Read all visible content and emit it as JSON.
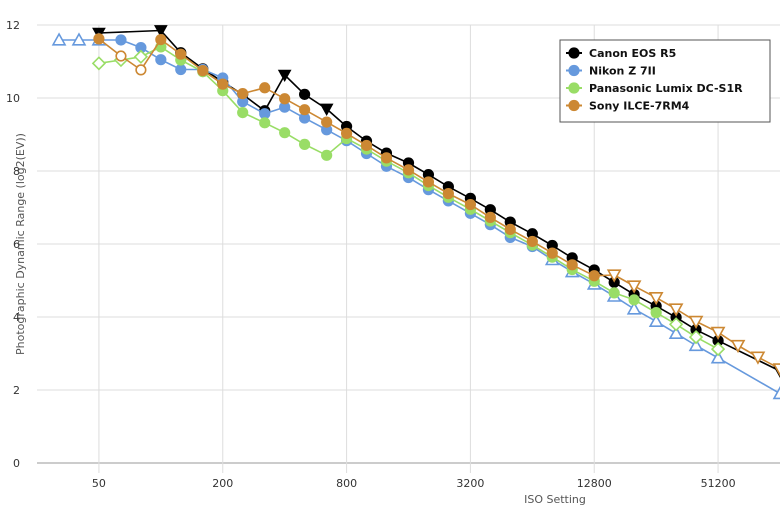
{
  "chart_data": {
    "type": "line",
    "title": "",
    "xlabel": "ISO Setting",
    "ylabel": "Photographic Dynamic Range (log2(EV))",
    "x_scale": "log2",
    "xlim": [
      25,
      102400
    ],
    "ylim": [
      0,
      12
    ],
    "x_ticks": [
      50,
      200,
      800,
      3200,
      12800,
      51200
    ],
    "x_tick_labels": [
      "50",
      "200",
      "800",
      "3200",
      "12800",
      "51200"
    ],
    "y_ticks": [
      0,
      2,
      4,
      6,
      8,
      10,
      12
    ],
    "y_tick_labels": [
      "0",
      "2",
      "4",
      "6",
      "8",
      "10",
      "12"
    ],
    "grid": true,
    "legend_position": "top-right",
    "series": [
      {
        "name": "Canon EOS R5",
        "color": "#000000",
        "marker": "circle",
        "extended_marker": "triangle-down",
        "points": [
          {
            "x": 50,
            "y": 11.78,
            "extended": true
          },
          {
            "x": 100,
            "y": 11.85,
            "extended": true
          },
          {
            "x": 125,
            "y": 11.24
          },
          {
            "x": 160,
            "y": 10.8
          },
          {
            "x": 200,
            "y": 10.44
          },
          {
            "x": 250,
            "y": 10.1
          },
          {
            "x": 320,
            "y": 9.65
          },
          {
            "x": 400,
            "y": 10.63,
            "extended": true
          },
          {
            "x": 500,
            "y": 10.1
          },
          {
            "x": 640,
            "y": 9.7,
            "extended": true
          },
          {
            "x": 800,
            "y": 9.22
          },
          {
            "x": 1000,
            "y": 8.82
          },
          {
            "x": 1250,
            "y": 8.49
          },
          {
            "x": 1600,
            "y": 8.22
          },
          {
            "x": 2000,
            "y": 7.9
          },
          {
            "x": 2500,
            "y": 7.57
          },
          {
            "x": 3200,
            "y": 7.25
          },
          {
            "x": 4000,
            "y": 6.94
          },
          {
            "x": 5000,
            "y": 6.6
          },
          {
            "x": 6400,
            "y": 6.28
          },
          {
            "x": 8000,
            "y": 5.96
          },
          {
            "x": 10000,
            "y": 5.62
          },
          {
            "x": 12800,
            "y": 5.29
          },
          {
            "x": 16000,
            "y": 4.95
          },
          {
            "x": 20000,
            "y": 4.62
          },
          {
            "x": 25600,
            "y": 4.3
          },
          {
            "x": 32000,
            "y": 3.99
          },
          {
            "x": 40000,
            "y": 3.65
          },
          {
            "x": 51200,
            "y": 3.35
          },
          {
            "x": 102400,
            "y": 2.52,
            "extended": true
          }
        ]
      },
      {
        "name": "Nikon Z 7II",
        "color": "#6699dd",
        "marker": "circle",
        "extended_marker": "triangle-up",
        "points": [
          {
            "x": 32,
            "y": 11.59,
            "extended": true
          },
          {
            "x": 40,
            "y": 11.59,
            "extended": true
          },
          {
            "x": 50,
            "y": 11.59,
            "extended": true
          },
          {
            "x": 64,
            "y": 11.59
          },
          {
            "x": 80,
            "y": 11.38
          },
          {
            "x": 100,
            "y": 11.05
          },
          {
            "x": 125,
            "y": 10.78
          },
          {
            "x": 160,
            "y": 10.78
          },
          {
            "x": 200,
            "y": 10.55
          },
          {
            "x": 250,
            "y": 9.9
          },
          {
            "x": 320,
            "y": 9.57
          },
          {
            "x": 400,
            "y": 9.75
          },
          {
            "x": 500,
            "y": 9.45
          },
          {
            "x": 640,
            "y": 9.13
          },
          {
            "x": 800,
            "y": 8.83
          },
          {
            "x": 1000,
            "y": 8.48
          },
          {
            "x": 1250,
            "y": 8.13
          },
          {
            "x": 1600,
            "y": 7.82
          },
          {
            "x": 2000,
            "y": 7.49
          },
          {
            "x": 2500,
            "y": 7.18
          },
          {
            "x": 3200,
            "y": 6.84
          },
          {
            "x": 4000,
            "y": 6.53
          },
          {
            "x": 5000,
            "y": 6.18
          },
          {
            "x": 6400,
            "y": 5.93
          },
          {
            "x": 8000,
            "y": 5.57,
            "extended": true
          },
          {
            "x": 10000,
            "y": 5.24,
            "extended": true
          },
          {
            "x": 12800,
            "y": 4.9,
            "extended": true
          },
          {
            "x": 16000,
            "y": 4.57,
            "extended": true
          },
          {
            "x": 20000,
            "y": 4.22,
            "extended": true
          },
          {
            "x": 25600,
            "y": 3.88,
            "extended": true
          },
          {
            "x": 32000,
            "y": 3.55,
            "extended": true
          },
          {
            "x": 40000,
            "y": 3.22,
            "extended": true
          },
          {
            "x": 51200,
            "y": 2.88,
            "extended": true
          },
          {
            "x": 102400,
            "y": 1.9,
            "extended": true
          }
        ]
      },
      {
        "name": "Panasonic Lumix DC-S1R",
        "color": "#99dd66",
        "marker": "circle",
        "extended_marker": "diamond",
        "points": [
          {
            "x": 50,
            "y": 10.95,
            "extended": true
          },
          {
            "x": 64,
            "y": 11.04,
            "extended": true
          },
          {
            "x": 80,
            "y": 11.13,
            "extended": true
          },
          {
            "x": 100,
            "y": 11.4
          },
          {
            "x": 125,
            "y": 11.04
          },
          {
            "x": 160,
            "y": 10.72
          },
          {
            "x": 200,
            "y": 10.2
          },
          {
            "x": 250,
            "y": 9.6
          },
          {
            "x": 320,
            "y": 9.32
          },
          {
            "x": 400,
            "y": 9.05
          },
          {
            "x": 500,
            "y": 8.73
          },
          {
            "x": 640,
            "y": 8.43
          },
          {
            "x": 800,
            "y": 8.89
          },
          {
            "x": 1000,
            "y": 8.6
          },
          {
            "x": 1250,
            "y": 8.27
          },
          {
            "x": 1600,
            "y": 7.95
          },
          {
            "x": 2000,
            "y": 7.6
          },
          {
            "x": 2500,
            "y": 7.28
          },
          {
            "x": 3200,
            "y": 6.95
          },
          {
            "x": 4000,
            "y": 6.63
          },
          {
            "x": 5000,
            "y": 6.31
          },
          {
            "x": 6400,
            "y": 5.97
          },
          {
            "x": 8000,
            "y": 5.64
          },
          {
            "x": 10000,
            "y": 5.3
          },
          {
            "x": 12800,
            "y": 4.98
          },
          {
            "x": 16000,
            "y": 4.66
          },
          {
            "x": 20000,
            "y": 4.47
          },
          {
            "x": 25600,
            "y": 4.12
          },
          {
            "x": 32000,
            "y": 3.8,
            "extended": true
          },
          {
            "x": 40000,
            "y": 3.45,
            "extended": true
          },
          {
            "x": 51200,
            "y": 3.12,
            "extended": true
          }
        ]
      },
      {
        "name": "Sony ILCE-7RM4",
        "color": "#cc8833",
        "marker": "circle",
        "extended_marker": "circle-open",
        "extended_end_marker": "triangle-down",
        "points": [
          {
            "x": 50,
            "y": 11.62
          },
          {
            "x": 64,
            "y": 11.15,
            "extended": true
          },
          {
            "x": 80,
            "y": 10.77,
            "extended": true
          },
          {
            "x": 100,
            "y": 11.6
          },
          {
            "x": 125,
            "y": 11.2
          },
          {
            "x": 160,
            "y": 10.75
          },
          {
            "x": 200,
            "y": 10.38
          },
          {
            "x": 250,
            "y": 10.12
          },
          {
            "x": 320,
            "y": 10.28
          },
          {
            "x": 400,
            "y": 9.98
          },
          {
            "x": 500,
            "y": 9.68
          },
          {
            "x": 640,
            "y": 9.34
          },
          {
            "x": 800,
            "y": 9.03
          },
          {
            "x": 1000,
            "y": 8.7
          },
          {
            "x": 1250,
            "y": 8.36
          },
          {
            "x": 1600,
            "y": 8.03
          },
          {
            "x": 2000,
            "y": 7.7
          },
          {
            "x": 2500,
            "y": 7.38
          },
          {
            "x": 3200,
            "y": 7.08
          },
          {
            "x": 4000,
            "y": 6.73
          },
          {
            "x": 5000,
            "y": 6.4
          },
          {
            "x": 6400,
            "y": 6.07
          },
          {
            "x": 8000,
            "y": 5.75
          },
          {
            "x": 10000,
            "y": 5.43
          },
          {
            "x": 12800,
            "y": 5.13
          },
          {
            "x": 16000,
            "y": 5.15,
            "extended": true
          },
          {
            "x": 20000,
            "y": 4.85,
            "extended": true
          },
          {
            "x": 25600,
            "y": 4.53,
            "extended": true
          },
          {
            "x": 32000,
            "y": 4.22,
            "extended": true
          },
          {
            "x": 40000,
            "y": 3.88,
            "extended": true
          },
          {
            "x": 51200,
            "y": 3.58,
            "extended": true
          },
          {
            "x": 64000,
            "y": 3.22,
            "extended": true
          },
          {
            "x": 80000,
            "y": 2.9,
            "extended": true
          },
          {
            "x": 102400,
            "y": 2.58,
            "extended": true
          }
        ]
      }
    ]
  }
}
